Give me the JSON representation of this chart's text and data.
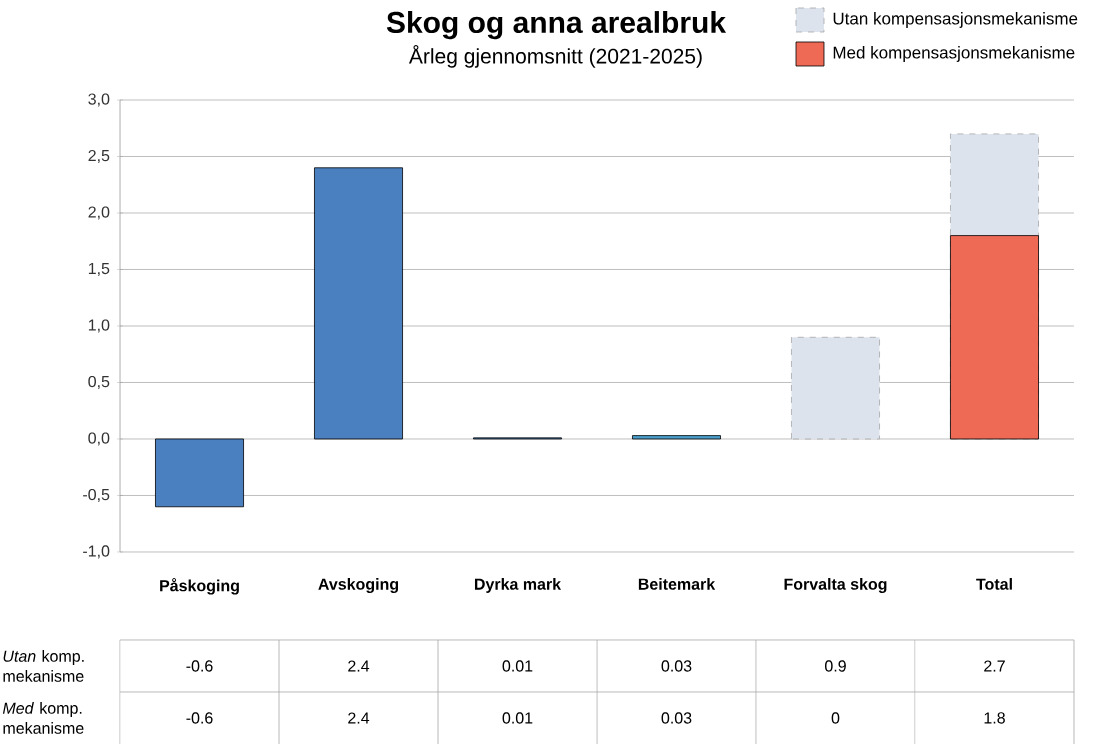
{
  "chart_data": {
    "type": "bar",
    "title": "Skog og anna arealbruk",
    "subtitle": "Årleg gjennomsnitt (2021-2025)",
    "categories": [
      "Påskoging",
      "Avskoging",
      "Dyrka mark",
      "Beitemark",
      "Forvalta skog",
      "Total"
    ],
    "series": [
      {
        "name": "Utan kompensasjonsmekanisme",
        "color": "#dde3ed",
        "values": [
          null,
          null,
          null,
          null,
          0.9,
          2.7
        ],
        "value_labels": [
          "-0.6",
          "2.4",
          "0.01",
          "0.03",
          "0.9",
          "2.7"
        ]
      },
      {
        "name": "Med kompensasjonsmekanisme",
        "colors": [
          "#4a7fc0",
          "#4a7fc0",
          "#4a7fc0",
          "#4a9fcc",
          "#4a7fc0",
          "#ee6a55"
        ],
        "values": [
          -0.6,
          2.4,
          0.01,
          0.03,
          0,
          1.8
        ],
        "value_labels": [
          "-0.6",
          "2.4",
          "0.01",
          "0.03",
          "0",
          "1.8"
        ]
      }
    ],
    "annotations": [
      "*Utan* komp. mekanisme",
      "*Med* komp. mekanisme"
    ],
    "ylim": [
      -1.0,
      3.0
    ],
    "yticks": [
      {
        "value": -1.0,
        "label": "-1,0"
      },
      {
        "value": -0.5,
        "label": "-0,5"
      },
      {
        "value": 0,
        "label": "0,0"
      },
      {
        "value": 0.5,
        "label": "0,5"
      },
      {
        "value": 1.0,
        "label": "1,0"
      },
      {
        "value": 1.5,
        "label": "1,5"
      },
      {
        "value": 2.0,
        "label": "2,0"
      },
      {
        "value": 2.5,
        "label": "2,5"
      },
      {
        "value": 3.0,
        "label": "3,0"
      }
    ],
    "grid": "y",
    "legend": "top right"
  }
}
